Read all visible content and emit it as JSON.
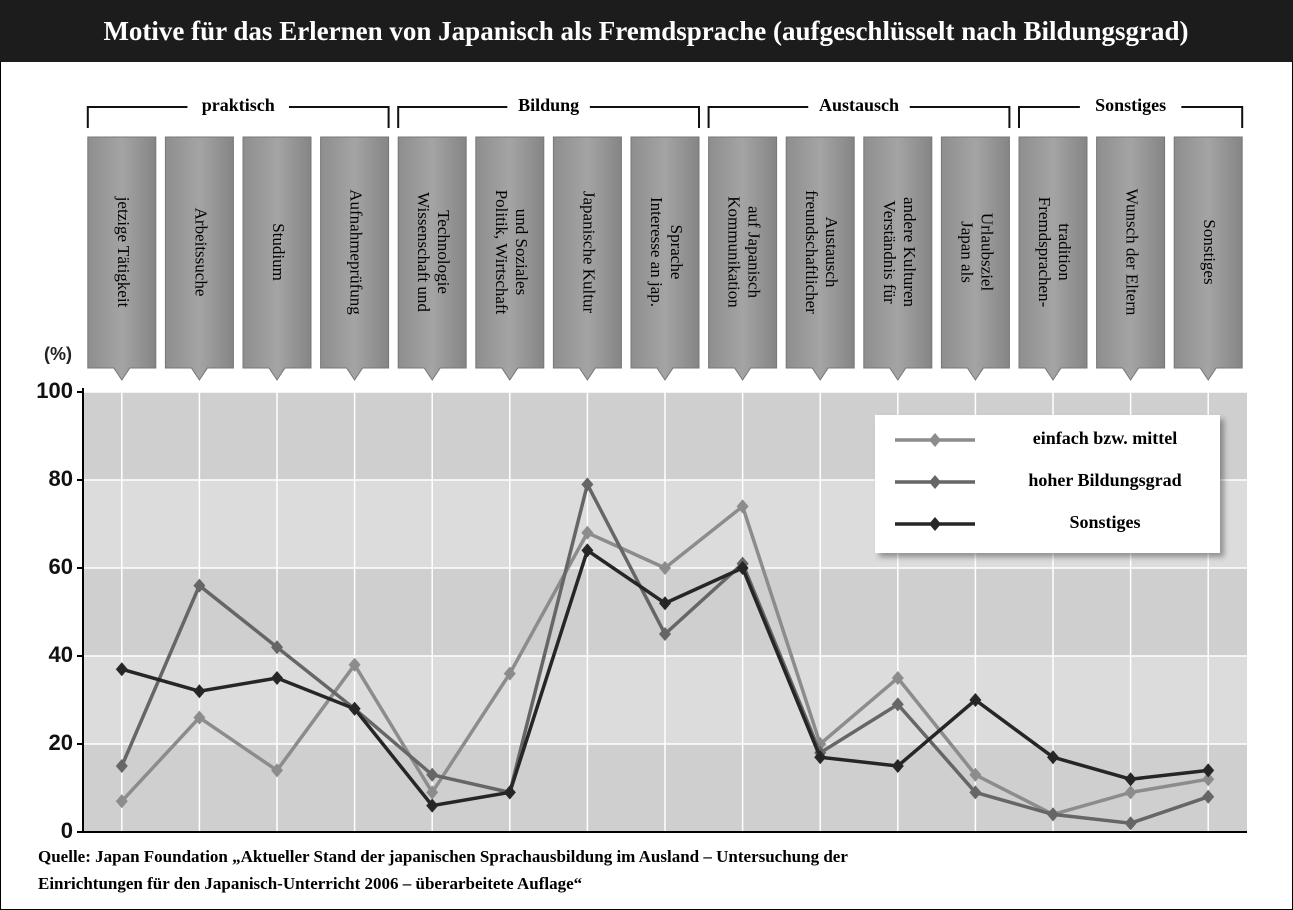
{
  "chart_data": {
    "type": "line",
    "title": "Motive für das Erlernen von Japanisch als Fremdsprache (aufgeschlüsselt nach Bildungsgrad)",
    "y_unit": "(%)",
    "groups": [
      {
        "name": "praktisch",
        "categories": [
          "jetzige Tätigkeit",
          "Arbeitssuche",
          "Studium",
          "Aufnahmeprüfung"
        ]
      },
      {
        "name": "Bildung",
        "categories": [
          "Wissenschaft und\nTechnologie",
          "Politik, Wirtschaft\nund Soziales",
          "Japanische Kultur",
          "Interesse an jap.\nSprache"
        ]
      },
      {
        "name": "Austausch",
        "categories": [
          "Kommunikation\nauf Japanisch",
          "freundschaftlicher\nAustausch",
          "Verständnis für\nandere Kulturen",
          "Japan als\nUrlaubsziel"
        ]
      },
      {
        "name": "Sonstiges",
        "categories": [
          "Fremdsprachen-\ntradition",
          "Wunsch der Eltern",
          "Sonstiges"
        ]
      }
    ],
    "series": [
      {
        "name": "einfach bzw. mittel",
        "color": "#8c8c8c",
        "values": [
          7,
          26,
          14,
          38,
          9,
          36,
          68,
          60,
          74,
          20,
          35,
          13,
          4,
          9,
          12
        ]
      },
      {
        "name": "hoher Bildungsgrad",
        "color": "#666666",
        "values": [
          15,
          56,
          42,
          28,
          13,
          9,
          79,
          45,
          61,
          18,
          29,
          9,
          4,
          2,
          8
        ]
      },
      {
        "name": "Sonstiges",
        "color": "#262626",
        "values": [
          37,
          32,
          35,
          28,
          6,
          9,
          64,
          52,
          60,
          17,
          15,
          30,
          17,
          12,
          14
        ]
      }
    ],
    "ylim": [
      0,
      100
    ],
    "yticks": [
      0,
      20,
      40,
      60,
      80,
      100
    ],
    "grid": true,
    "legend": "upper right",
    "source": [
      "Quelle: Japan Foundation „Aktueller Stand der japanischen Sprachausbildung im Ausland – Untersuchung der",
      "Einrichtungen für den Japanisch-Unterricht 2006 – überarbeitete Auflage“"
    ]
  }
}
